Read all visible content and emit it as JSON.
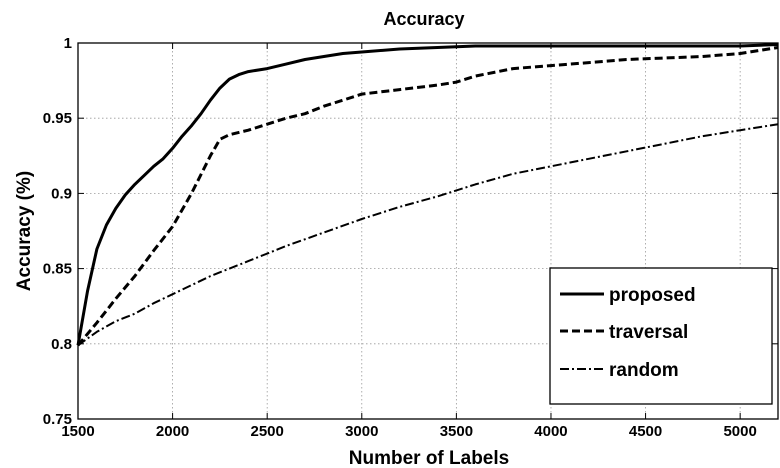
{
  "chart_data": {
    "type": "line",
    "title": "Accuracy",
    "xlabel": "Number of Labels",
    "ylabel": "Accuracy  (%)",
    "xlim": [
      1500,
      5200
    ],
    "ylim": [
      0.75,
      1.0
    ],
    "xticks": [
      1500,
      2000,
      2500,
      3000,
      3500,
      4000,
      4500,
      5000
    ],
    "xtick_labels": [
      "1500",
      "2000",
      "2500",
      "3000",
      "3500",
      "4000",
      "4500",
      "5000"
    ],
    "yticks": [
      0.75,
      0.8,
      0.85,
      0.9,
      0.95,
      1.0
    ],
    "ytick_labels": [
      "0.75",
      "0.8",
      "0.85",
      "0.9",
      "0.95",
      "1"
    ],
    "grid": true,
    "legend_position": "bottom-right",
    "series": [
      {
        "name": "proposed",
        "style": "solid",
        "x": [
          1500,
          1550,
          1600,
          1650,
          1700,
          1750,
          1800,
          1850,
          1900,
          1950,
          2000,
          2050,
          2100,
          2150,
          2200,
          2250,
          2300,
          2350,
          2400,
          2500,
          2600,
          2700,
          2800,
          2900,
          3000,
          3200,
          3400,
          3600,
          3800,
          4000,
          4500,
          5000,
          5200
        ],
        "y": [
          0.799,
          0.835,
          0.863,
          0.879,
          0.89,
          0.899,
          0.906,
          0.912,
          0.918,
          0.923,
          0.93,
          0.938,
          0.945,
          0.953,
          0.962,
          0.97,
          0.976,
          0.979,
          0.981,
          0.983,
          0.986,
          0.989,
          0.991,
          0.993,
          0.994,
          0.996,
          0.997,
          0.998,
          0.998,
          0.998,
          0.998,
          0.998,
          0.999
        ]
      },
      {
        "name": "traversal",
        "style": "dashed",
        "x": [
          1500,
          1600,
          1700,
          1800,
          1900,
          2000,
          2100,
          2200,
          2250,
          2300,
          2400,
          2500,
          2600,
          2700,
          2800,
          2900,
          3000,
          3200,
          3400,
          3500,
          3600,
          3800,
          4000,
          4200,
          4400,
          4600,
          4800,
          5000,
          5200
        ],
        "y": [
          0.799,
          0.814,
          0.83,
          0.845,
          0.862,
          0.878,
          0.9,
          0.925,
          0.936,
          0.939,
          0.942,
          0.946,
          0.95,
          0.953,
          0.958,
          0.962,
          0.966,
          0.969,
          0.972,
          0.974,
          0.978,
          0.983,
          0.985,
          0.987,
          0.989,
          0.99,
          0.991,
          0.993,
          0.997
        ]
      },
      {
        "name": "random",
        "style": "dashdot",
        "x": [
          1500,
          1600,
          1700,
          1800,
          1900,
          2000,
          2200,
          2400,
          2600,
          2800,
          3000,
          3200,
          3400,
          3600,
          3800,
          4000,
          4200,
          4400,
          4600,
          4800,
          5000,
          5200
        ],
        "y": [
          0.799,
          0.808,
          0.815,
          0.82,
          0.827,
          0.833,
          0.845,
          0.855,
          0.865,
          0.874,
          0.883,
          0.891,
          0.898,
          0.906,
          0.913,
          0.918,
          0.923,
          0.928,
          0.933,
          0.938,
          0.942,
          0.946
        ]
      }
    ]
  }
}
